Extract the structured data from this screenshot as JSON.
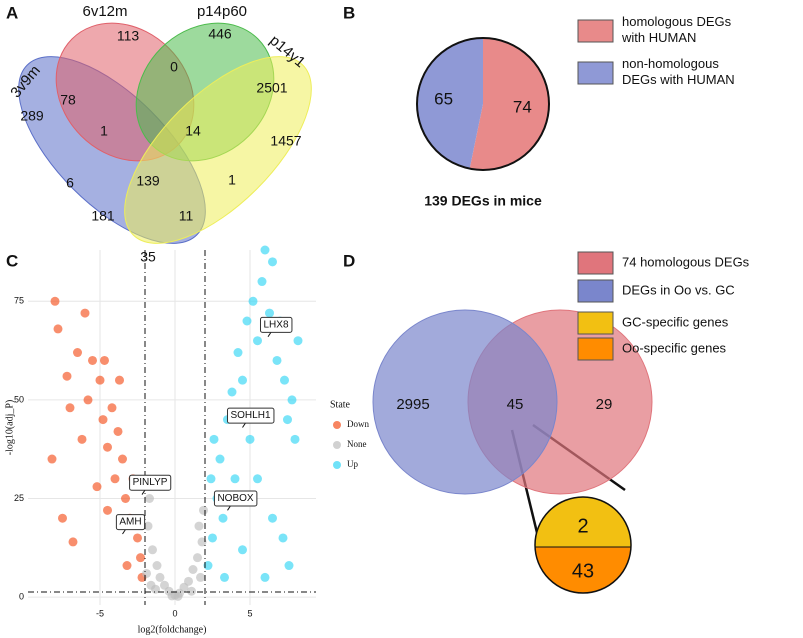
{
  "chart_data": [
    {
      "type": "venn4",
      "panel": "A",
      "sets": [
        {
          "name": "3v9m",
          "color": "#5b6fc8"
        },
        {
          "name": "6v12m",
          "color": "#e0606a"
        },
        {
          "name": "p14p60",
          "color": "#4cbb4c"
        },
        {
          "name": "p14y1",
          "color": "#eeee5a"
        }
      ],
      "values": [
        113,
        446,
        78,
        0,
        2501,
        289,
        1,
        14,
        1457,
        6,
        139,
        1,
        181,
        11,
        35
      ]
    },
    {
      "type": "pie",
      "panel": "B",
      "title": "139 DEGs in mice",
      "categories": [
        "homologous DEGs\nwith HUMAN",
        "non-homologous\nDEGs with HUMAN"
      ],
      "values": [
        74,
        65
      ],
      "colors": [
        "#e88a8a",
        "#8f99d6"
      ]
    },
    {
      "type": "scatter",
      "panel": "C",
      "xlabel": "log2(foldchange)",
      "ylabel": "-log10(adj_P)",
      "xlim": [
        -9.8,
        9.4
      ],
      "ylim": [
        -2,
        88
      ],
      "xticks": [
        -5,
        0,
        5
      ],
      "yticks": [
        0,
        25,
        50,
        75
      ],
      "grid": true,
      "legend_title": "State",
      "thresholds": {
        "x": [
          -2,
          2
        ],
        "y": 1.3
      },
      "series": [
        {
          "name": "Down",
          "color": "#f4511e",
          "x": [
            -8,
            -7.8,
            -7.2,
            -8.2,
            -6.5,
            -6,
            -5.5,
            -5.8,
            -5,
            -4.8,
            -4.5,
            -4.2,
            -4,
            -3.8,
            -3.5,
            -3.3,
            -3,
            -2.8,
            -2.5,
            -2.3,
            -2.2,
            -3.2,
            -4.5,
            -5.2,
            -6.2,
            -7,
            -7.5,
            -6.8,
            -3.7,
            -4.7
          ],
          "values": [
            75,
            68,
            56,
            35,
            62,
            72,
            60,
            50,
            55,
            45,
            38,
            48,
            30,
            42,
            35,
            25,
            20,
            30,
            15,
            10,
            5,
            8,
            22,
            28,
            40,
            48,
            20,
            14,
            55,
            60
          ]
        },
        {
          "name": "None",
          "color": "#bdbdbd",
          "x": [
            -1.8,
            -1.5,
            -1.2,
            -1,
            -0.7,
            -0.4,
            0,
            0.3,
            0.6,
            0.9,
            1.2,
            1.5,
            1.8,
            -1.9,
            -1.6,
            1.7,
            1.9,
            -1.3,
            1.1,
            0.2,
            -0.2,
            -1.7,
            1.6
          ],
          "values": [
            18,
            12,
            8,
            5,
            3,
            1.5,
            0.5,
            1,
            2.5,
            4,
            7,
            10,
            14,
            6,
            3,
            5,
            22,
            2,
            1.5,
            0.2,
            0.3,
            25,
            18
          ]
        },
        {
          "name": "Up",
          "color": "#33d6f5",
          "x": [
            2.2,
            2.5,
            2.8,
            3,
            3.2,
            3.5,
            3.8,
            4,
            4.2,
            4.5,
            4.8,
            5,
            5.2,
            5.5,
            5.8,
            6,
            6.3,
            6.5,
            6.8,
            7,
            7.3,
            7.5,
            7.8,
            8,
            6.5,
            7.2,
            5.5,
            4.5,
            3.3,
            2.4,
            8.2,
            6,
            7.6,
            2.6
          ],
          "values": [
            8,
            15,
            25,
            35,
            20,
            45,
            52,
            30,
            62,
            55,
            70,
            40,
            75,
            65,
            80,
            88,
            72,
            85,
            60,
            70,
            55,
            45,
            50,
            40,
            20,
            15,
            30,
            12,
            5,
            30,
            65,
            5,
            8,
            40
          ]
        }
      ],
      "annotations": [
        {
          "text": "LHX8",
          "x": 6.2,
          "y": 66
        },
        {
          "text": "SOHLH1",
          "x": 4.5,
          "y": 43
        },
        {
          "text": "NOBOX",
          "x": 3.5,
          "y": 22
        },
        {
          "text": "PINLYP",
          "x": -2.2,
          "y": 26
        },
        {
          "text": "AMH",
          "x": -3.5,
          "y": 16
        }
      ]
    },
    {
      "type": "venn2",
      "panel": "D",
      "sets": [
        {
          "name": "74 homologous DEGs",
          "color": "#e0757c"
        },
        {
          "name": "DEGs in Oo vs. GC",
          "color": "#7a86cc"
        }
      ],
      "values": [
        2995,
        45,
        29
      ]
    },
    {
      "type": "splitpie",
      "categories": [
        "GC-specific genes",
        "Oo-specific genes"
      ],
      "values": [
        2,
        43
      ],
      "colors": [
        "#f2c012",
        "#ff8c00"
      ]
    }
  ]
}
